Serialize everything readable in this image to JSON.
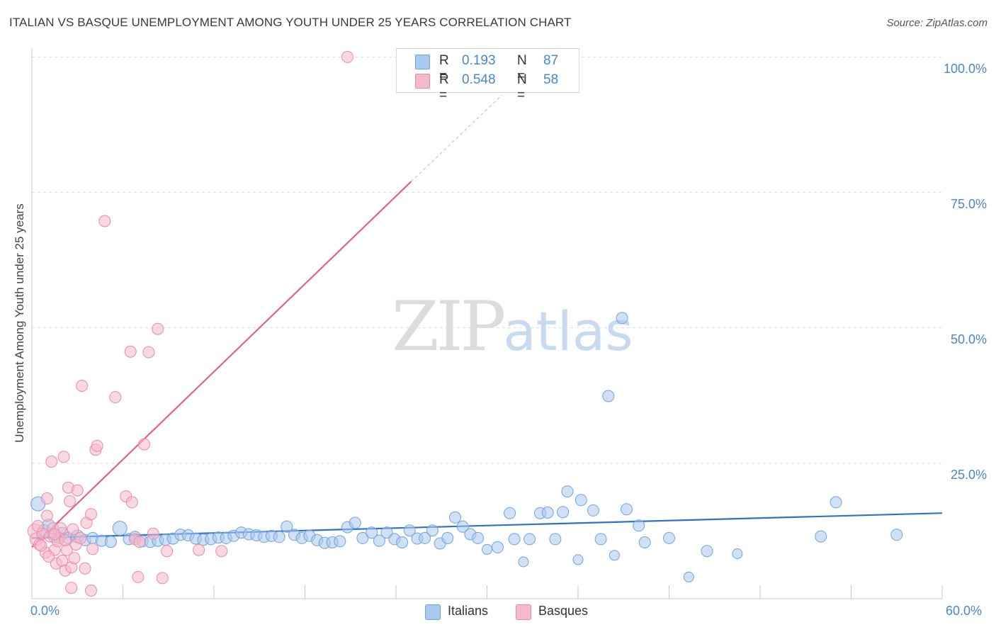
{
  "title": "ITALIAN VS BASQUE UNEMPLOYMENT AMONG YOUTH UNDER 25 YEARS CORRELATION CHART",
  "source": "Source: ZipAtlas.com",
  "watermark": {
    "zip": "ZIP",
    "atlas": "atlas"
  },
  "legend": {
    "italians": {
      "r_label": "R =",
      "r_value": "0.193",
      "n_label": "N =",
      "n_value": "87",
      "color": "#a9c9ef"
    },
    "basques": {
      "r_label": "R =",
      "r_value": "0.548",
      "n_label": "N =",
      "n_value": "58",
      "color": "#f6b8cb"
    }
  },
  "bottom_legend": {
    "italians": "Italians",
    "basques": "Basques"
  },
  "chart_data": {
    "type": "scatter",
    "title": "ITALIAN VS BASQUE UNEMPLOYMENT AMONG YOUTH UNDER 25 YEARS CORRELATION CHART",
    "xlabel": "",
    "ylabel": "Unemployment Among Youth under 25 years",
    "xlim": [
      0,
      60
    ],
    "ylim": [
      0,
      102
    ],
    "x_tick_labels": [
      "0.0%",
      "60.0%"
    ],
    "y_ticks": [
      25,
      50,
      75,
      100
    ],
    "y_tick_labels": [
      "25.0%",
      "50.0%",
      "75.0%",
      "100.0%"
    ],
    "grid": true,
    "series": [
      {
        "name": "Italians",
        "color": "#a9c9ef",
        "edge": "#6fa3de",
        "trend": {
          "x": [
            0,
            60
          ],
          "y": [
            11.2,
            15.8
          ],
          "color": "#2f72c9"
        },
        "points": [
          [
            0.4,
            17.5,
            10
          ],
          [
            0.8,
            12.5,
            9
          ],
          [
            1.1,
            13.5,
            9
          ],
          [
            1.5,
            11.5,
            9
          ],
          [
            2.0,
            12.0,
            9
          ],
          [
            2.4,
            11.2,
            8
          ],
          [
            3.0,
            11.5,
            9
          ],
          [
            3.5,
            10.8,
            8
          ],
          [
            4.0,
            11.2,
            8
          ],
          [
            4.6,
            10.7,
            8
          ],
          [
            5.2,
            10.5,
            8
          ],
          [
            5.8,
            13.0,
            10
          ],
          [
            6.4,
            11.0,
            8
          ],
          [
            6.8,
            11.4,
            8
          ],
          [
            7.3,
            10.6,
            8
          ],
          [
            7.8,
            10.5,
            8
          ],
          [
            8.3,
            10.7,
            8
          ],
          [
            8.8,
            10.9,
            8
          ],
          [
            9.3,
            11.1,
            8
          ],
          [
            9.8,
            11.8,
            8
          ],
          [
            10.3,
            11.7,
            8
          ],
          [
            10.8,
            11.1,
            8
          ],
          [
            11.3,
            10.9,
            8
          ],
          [
            11.8,
            11.0,
            8
          ],
          [
            12.3,
            11.3,
            8
          ],
          [
            12.8,
            11.2,
            8
          ],
          [
            13.3,
            11.6,
            8
          ],
          [
            13.8,
            12.2,
            8
          ],
          [
            14.3,
            11.9,
            8
          ],
          [
            14.8,
            11.7,
            8
          ],
          [
            15.3,
            11.4,
            8
          ],
          [
            15.8,
            11.6,
            8
          ],
          [
            16.3,
            11.4,
            8
          ],
          [
            16.8,
            13.3,
            8
          ],
          [
            17.3,
            11.8,
            8
          ],
          [
            17.8,
            11.2,
            8
          ],
          [
            18.3,
            11.6,
            8
          ],
          [
            18.8,
            10.8,
            8
          ],
          [
            19.3,
            10.3,
            8
          ],
          [
            19.8,
            10.4,
            8
          ],
          [
            20.3,
            10.6,
            8
          ],
          [
            20.8,
            13.2,
            8
          ],
          [
            21.3,
            14.0,
            8
          ],
          [
            21.8,
            11.2,
            8
          ],
          [
            22.4,
            12.2,
            8
          ],
          [
            22.9,
            10.7,
            8
          ],
          [
            23.4,
            12.2,
            8
          ],
          [
            23.9,
            11.0,
            8
          ],
          [
            24.4,
            10.4,
            8
          ],
          [
            24.9,
            12.6,
            8
          ],
          [
            25.4,
            11.1,
            8
          ],
          [
            25.9,
            11.2,
            8
          ],
          [
            26.4,
            12.6,
            8
          ],
          [
            26.9,
            10.2,
            8
          ],
          [
            27.4,
            11.2,
            8
          ],
          [
            27.9,
            15.0,
            8
          ],
          [
            28.4,
            13.3,
            8
          ],
          [
            28.9,
            11.9,
            8
          ],
          [
            29.4,
            11.2,
            8
          ],
          [
            30.0,
            9.1,
            7
          ],
          [
            30.7,
            9.5,
            8
          ],
          [
            31.5,
            15.8,
            8
          ],
          [
            31.8,
            11.0,
            8
          ],
          [
            32.4,
            6.8,
            7
          ],
          [
            32.8,
            11.0,
            8
          ],
          [
            33.5,
            15.8,
            8
          ],
          [
            34.0,
            15.9,
            8
          ],
          [
            34.5,
            11.0,
            8
          ],
          [
            35.0,
            16.0,
            8
          ],
          [
            35.3,
            19.8,
            8
          ],
          [
            36.0,
            7.2,
            7
          ],
          [
            36.2,
            18.2,
            8
          ],
          [
            37.0,
            16.3,
            8
          ],
          [
            37.5,
            11.0,
            8
          ],
          [
            38.0,
            37.4,
            8
          ],
          [
            38.4,
            8.0,
            7
          ],
          [
            38.9,
            51.8,
            8
          ],
          [
            39.2,
            16.5,
            8
          ],
          [
            40.0,
            13.5,
            8
          ],
          [
            40.4,
            10.4,
            8
          ],
          [
            42.0,
            11.2,
            8
          ],
          [
            43.3,
            4.0,
            7
          ],
          [
            44.5,
            8.8,
            8
          ],
          [
            46.5,
            8.3,
            7
          ],
          [
            52.0,
            11.5,
            8
          ],
          [
            53.0,
            17.8,
            8
          ],
          [
            57.0,
            11.8,
            8
          ]
        ]
      },
      {
        "name": "Basques",
        "color": "#f6b8cb",
        "edge": "#ea8aa9",
        "trend": {
          "x": [
            0,
            25
          ],
          "y": [
            9.5,
            77.0
          ],
          "color": "#e4608e",
          "dashed_to": {
            "x": 31,
            "y": 93
          }
        },
        "points": [
          [
            0.2,
            12.5,
            10
          ],
          [
            0.3,
            11.0,
            9
          ],
          [
            0.5,
            10.0,
            8
          ],
          [
            0.7,
            12.0,
            8
          ],
          [
            0.9,
            8.5,
            8
          ],
          [
            1.0,
            18.5,
            8
          ],
          [
            1.0,
            15.3,
            8
          ],
          [
            1.2,
            11.5,
            8
          ],
          [
            1.3,
            25.3,
            8
          ],
          [
            1.4,
            13.0,
            8
          ],
          [
            1.5,
            9.0,
            8
          ],
          [
            1.6,
            6.5,
            8
          ],
          [
            1.8,
            11.2,
            8
          ],
          [
            1.9,
            13.0,
            8
          ],
          [
            2.0,
            7.0,
            8
          ],
          [
            2.1,
            26.2,
            8
          ],
          [
            2.2,
            5.2,
            8
          ],
          [
            2.3,
            9.0,
            8
          ],
          [
            2.4,
            20.5,
            8
          ],
          [
            2.5,
            18.0,
            8
          ],
          [
            2.6,
            2.0,
            8
          ],
          [
            2.6,
            5.8,
            8
          ],
          [
            2.8,
            7.5,
            8
          ],
          [
            2.9,
            10.0,
            8
          ],
          [
            3.0,
            20.0,
            8
          ],
          [
            3.2,
            11.2,
            8
          ],
          [
            3.3,
            39.3,
            8
          ],
          [
            3.5,
            5.6,
            8
          ],
          [
            3.6,
            14.0,
            8
          ],
          [
            3.9,
            1.5,
            8
          ],
          [
            4.0,
            9.2,
            8
          ],
          [
            3.9,
            15.6,
            8
          ],
          [
            4.2,
            27.5,
            8
          ],
          [
            4.3,
            28.2,
            8
          ],
          [
            4.8,
            69.7,
            8
          ],
          [
            5.5,
            37.2,
            8
          ],
          [
            6.2,
            18.9,
            8
          ],
          [
            6.5,
            45.6,
            8
          ],
          [
            6.6,
            17.8,
            8
          ],
          [
            6.8,
            11.0,
            8
          ],
          [
            7.0,
            4.0,
            8
          ],
          [
            7.1,
            10.5,
            8
          ],
          [
            7.4,
            28.5,
            8
          ],
          [
            7.7,
            45.5,
            8
          ],
          [
            8.0,
            12.0,
            8
          ],
          [
            8.3,
            49.8,
            8
          ],
          [
            8.6,
            3.8,
            8
          ],
          [
            8.9,
            8.8,
            8
          ],
          [
            11.0,
            9.0,
            8
          ],
          [
            12.5,
            8.8,
            8
          ],
          [
            20.8,
            100.0,
            8
          ],
          [
            0.6,
            9.8,
            8
          ],
          [
            1.7,
            10.6,
            8
          ],
          [
            2.7,
            12.8,
            8
          ],
          [
            0.4,
            13.4,
            8
          ],
          [
            1.1,
            7.8,
            8
          ],
          [
            1.5,
            11.9,
            8
          ],
          [
            2.2,
            10.8,
            8
          ]
        ]
      }
    ]
  }
}
